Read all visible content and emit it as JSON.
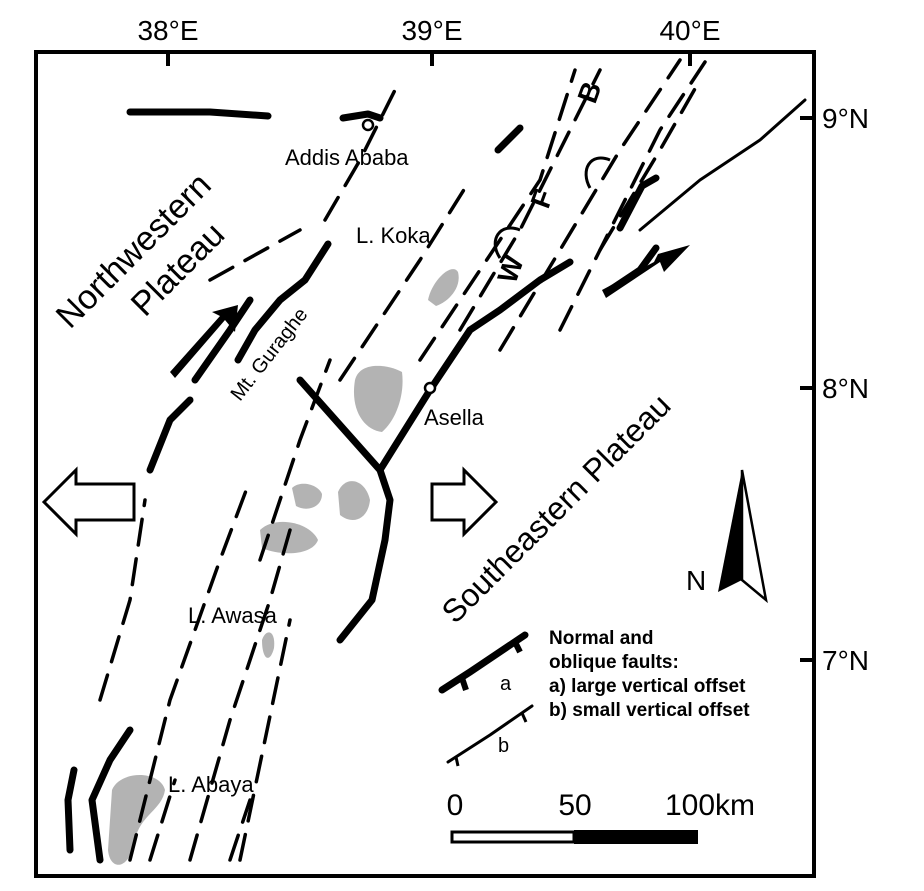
{
  "axes": {
    "longitude_labels": [
      "38°E",
      "39°E",
      "40°E"
    ],
    "latitude_labels": [
      "9°N",
      "8°N",
      "7°N"
    ]
  },
  "places": {
    "addis_ababa": "Addis Ababa",
    "koka": "L. Koka",
    "guraghe": "Mt. Guraghe",
    "asella": "Asella",
    "awasa": "L. Awasa",
    "abaya": "L. Abaya"
  },
  "regions": {
    "nw_plateau_line1": "Northwestern",
    "nw_plateau_line2": "Plateau",
    "se_plateau": "Southeastern Plateau"
  },
  "fault_belt_letters": [
    "W",
    "F",
    "B"
  ],
  "north_arrow": {
    "label": "N"
  },
  "legend": {
    "title_line1": "Normal and",
    "title_line2": "oblique faults:",
    "item_a_symbol": "a",
    "item_b_symbol": "b",
    "item_a": "a) large vertical offset",
    "item_b": "b) small vertical offset"
  },
  "scale_bar": {
    "ticks": [
      "0",
      "50",
      "100km"
    ]
  },
  "colors": {
    "lake": "#9a9a9a",
    "line": "#000000"
  }
}
